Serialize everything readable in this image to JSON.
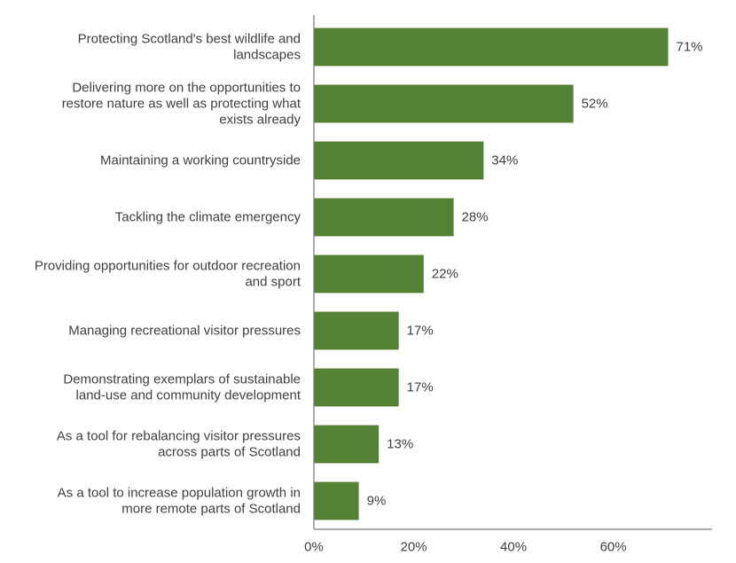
{
  "chart_data": {
    "type": "bar",
    "orientation": "horizontal",
    "categories": [
      [
        "Protecting Scotland's best wildlife and",
        "landscapes"
      ],
      [
        "Delivering more on the opportunities to",
        "restore nature as well as protecting what",
        "exists already"
      ],
      [
        "Maintaining a working countryside"
      ],
      [
        "Tackling the climate emergency"
      ],
      [
        "Providing opportunities for outdoor recreation",
        "and sport"
      ],
      [
        "Managing recreational visitor pressures"
      ],
      [
        "Demonstrating exemplars of sustainable",
        "land-use and community development"
      ],
      [
        "As a tool for rebalancing visitor pressures",
        "across parts of Scotland"
      ],
      [
        "As a tool to increase population growth in",
        "more remote parts of Scotland"
      ]
    ],
    "values": [
      71,
      52,
      34,
      28,
      22,
      17,
      17,
      13,
      9
    ],
    "value_labels": [
      "71%",
      "52%",
      "34%",
      "28%",
      "22%",
      "17%",
      "17%",
      "13%",
      "9%"
    ],
    "x_ticks": [
      0,
      20,
      40,
      60
    ],
    "x_tick_labels": [
      "0%",
      "20%",
      "40%",
      "60%"
    ],
    "xlim": [
      0,
      75
    ],
    "grid": false,
    "legend": "none",
    "bar_color": "#548235",
    "axis_color": "#7f7f7f"
  }
}
